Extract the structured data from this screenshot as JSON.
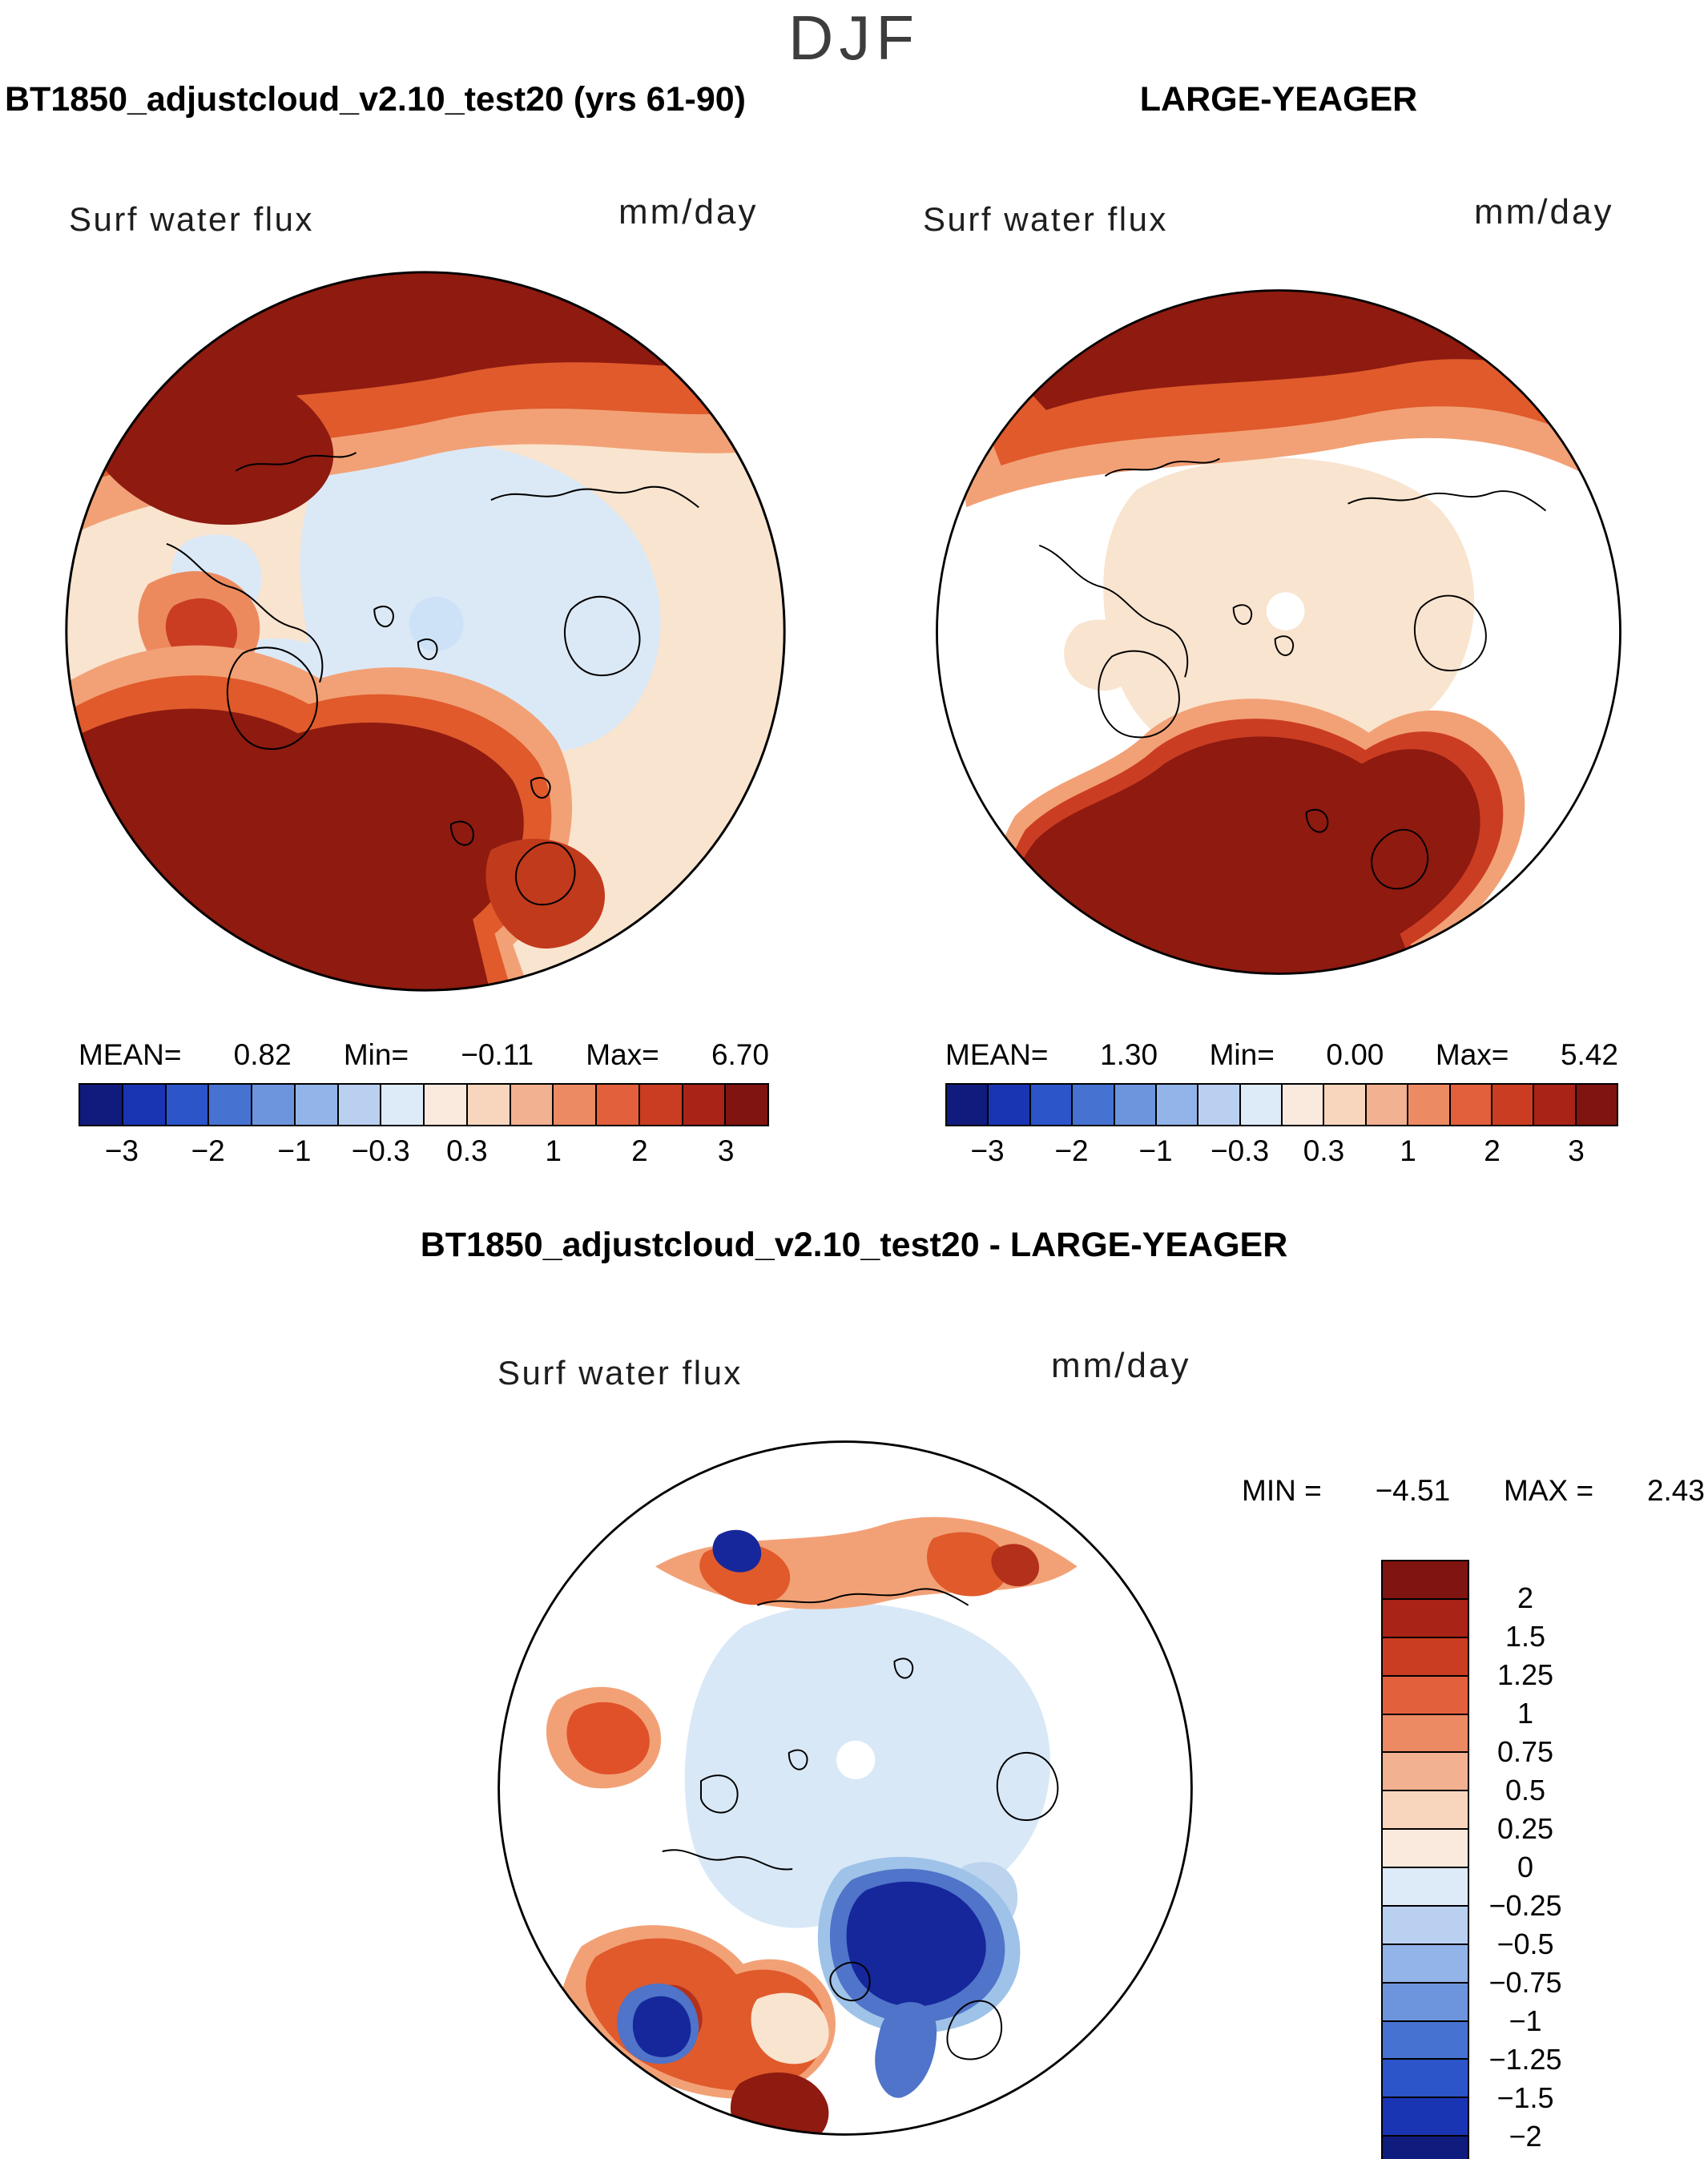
{
  "title": "DJF",
  "panels": [
    {
      "header": "BT1850_adjustcloud_v2.10_test20 (yrs 61-90)",
      "field_label": "Surf water flux",
      "units": "mm/day",
      "stats": {
        "mean_label": "MEAN=",
        "mean": "0.82",
        "min_label": "Min=",
        "min": "−0.11",
        "max_label": "Max=",
        "max": "6.70"
      },
      "colorbar": {
        "ticks": [
          "−3",
          "−2",
          "−1",
          "−0.3",
          "0.3",
          "1",
          "2",
          "3"
        ]
      }
    },
    {
      "header": "LARGE-YEAGER",
      "field_label": "Surf water flux",
      "units": "mm/day",
      "stats": {
        "mean_label": "MEAN=",
        "mean": "1.30",
        "min_label": "Min=",
        "min": "0.00",
        "max_label": "Max=",
        "max": "5.42"
      },
      "colorbar": {
        "ticks": [
          "−3",
          "−2",
          "−1",
          "−0.3",
          "0.3",
          "1",
          "2",
          "3"
        ]
      }
    }
  ],
  "diff": {
    "header": "BT1850_adjustcloud_v2.10_test20 - LARGE-YEAGER",
    "field_label": "Surf water flux",
    "units": "mm/day",
    "min_label": "MIN =",
    "min": "−4.51",
    "max_label": "MAX =",
    "max": "2.43",
    "colorbar_labels": [
      "2",
      "1.5",
      "1.25",
      "1",
      "0.75",
      "0.5",
      "0.25",
      "0",
      "−0.25",
      "−0.5",
      "−0.75",
      "−1",
      "−1.25",
      "−1.5",
      "−2"
    ]
  },
  "palettes": {
    "horizontal": [
      "#101b7e",
      "#1a35b3",
      "#2b55c8",
      "#4673d2",
      "#6d95de",
      "#93b4e8",
      "#bad0f0",
      "#ddeaf8",
      "#faeade",
      "#f7d6bd",
      "#f2b190",
      "#ec8a64",
      "#e2603c",
      "#cb3d22",
      "#a92317",
      "#7f1410"
    ],
    "vertical": [
      "#7f1410",
      "#a92317",
      "#cb3d22",
      "#e2603c",
      "#ec8a64",
      "#f2b190",
      "#f7d6bd",
      "#faeade",
      "#ddeaf8",
      "#bad0f0",
      "#93b4e8",
      "#6d95de",
      "#4673d2",
      "#2b55c8",
      "#1a35b3",
      "#101b7e"
    ]
  },
  "chart_data": [
    {
      "type": "heatmap",
      "subtype": "polar-stereographic-contour-map",
      "title": "BT1850_adjustcloud_v2.10_test20 (yrs 61-90)",
      "season": "DJF",
      "variable": "Surf water flux",
      "units": "mm/day",
      "stats": {
        "mean": 0.82,
        "min": -0.11,
        "max": 6.7
      },
      "colorbar_tick_values": [
        -3,
        -2,
        -1,
        -0.3,
        0.3,
        1,
        2,
        3
      ],
      "colorbar_orientation": "horizontal",
      "n_color_segments": 16
    },
    {
      "type": "heatmap",
      "subtype": "polar-stereographic-contour-map",
      "title": "LARGE-YEAGER",
      "season": "DJF",
      "variable": "Surf water flux",
      "units": "mm/day",
      "stats": {
        "mean": 1.3,
        "min": 0.0,
        "max": 5.42
      },
      "colorbar_tick_values": [
        -3,
        -2,
        -1,
        -0.3,
        0.3,
        1,
        2,
        3
      ],
      "colorbar_orientation": "horizontal",
      "n_color_segments": 16
    },
    {
      "type": "heatmap",
      "subtype": "polar-stereographic-contour-map-difference",
      "title": "BT1850_adjustcloud_v2.10_test20 - LARGE-YEAGER",
      "season": "DJF",
      "variable": "Surf water flux",
      "units": "mm/day",
      "stats": {
        "min": -4.51,
        "max": 2.43
      },
      "colorbar_tick_values": [
        2,
        1.5,
        1.25,
        1,
        0.75,
        0.5,
        0.25,
        0,
        -0.25,
        -0.5,
        -0.75,
        -1,
        -1.25,
        -1.5,
        -2
      ],
      "colorbar_orientation": "vertical",
      "n_color_segments": 16
    }
  ]
}
